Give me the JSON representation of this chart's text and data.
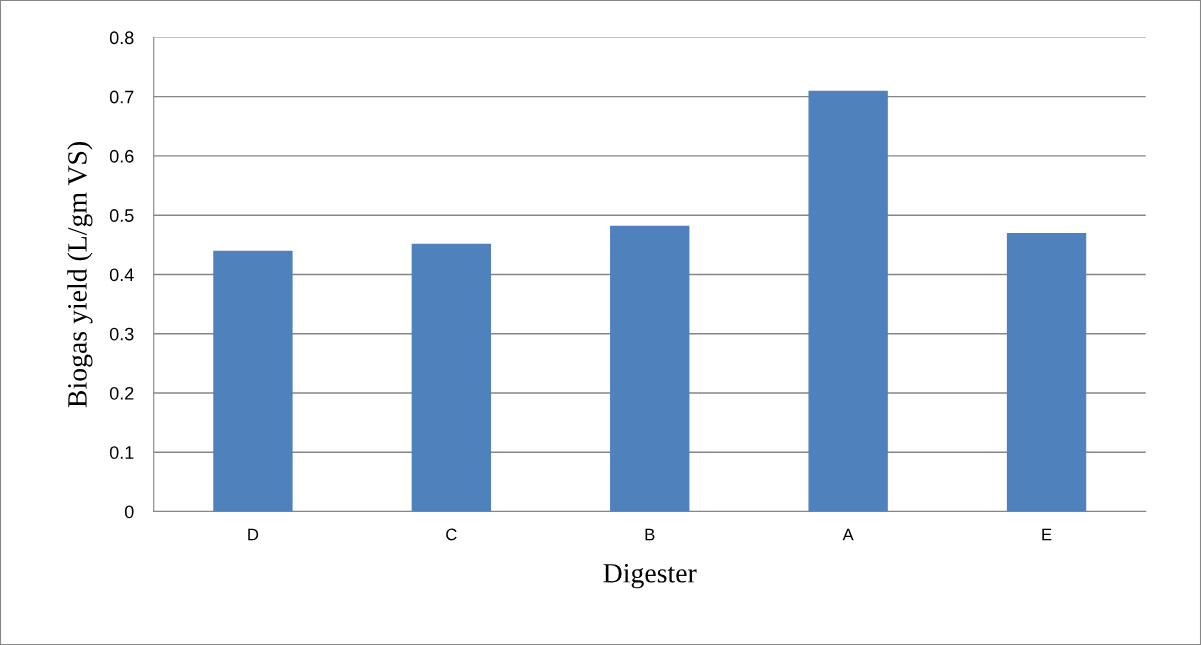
{
  "chart_data": {
    "type": "bar",
    "xlabel": "Digester",
    "ylabel": "Biogas yield (L/gm VS)",
    "categories": [
      "D",
      "C",
      "B",
      "A",
      "E"
    ],
    "values": [
      0.44,
      0.452,
      0.482,
      0.71,
      0.47
    ],
    "color": "#4f81bd",
    "ylim": [
      0,
      0.8
    ],
    "yticks": [
      {
        "value": 0,
        "label": "0"
      },
      0.1,
      0.2,
      0.3,
      0.4,
      0.5,
      0.6,
      0.7,
      0.8
    ],
    "grid": "y"
  }
}
